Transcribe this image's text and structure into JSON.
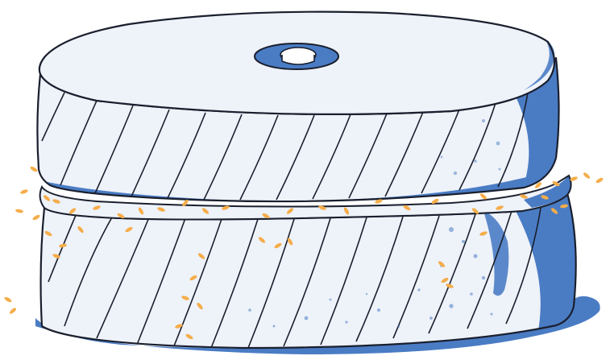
{
  "image": {
    "subject": "millstone-illustration",
    "colors": {
      "stone": "#eef2f9",
      "shade": "#4a7cc4",
      "outline": "#1a1f2e",
      "grain": "#f5ad4a",
      "background": "#ffffff"
    }
  }
}
